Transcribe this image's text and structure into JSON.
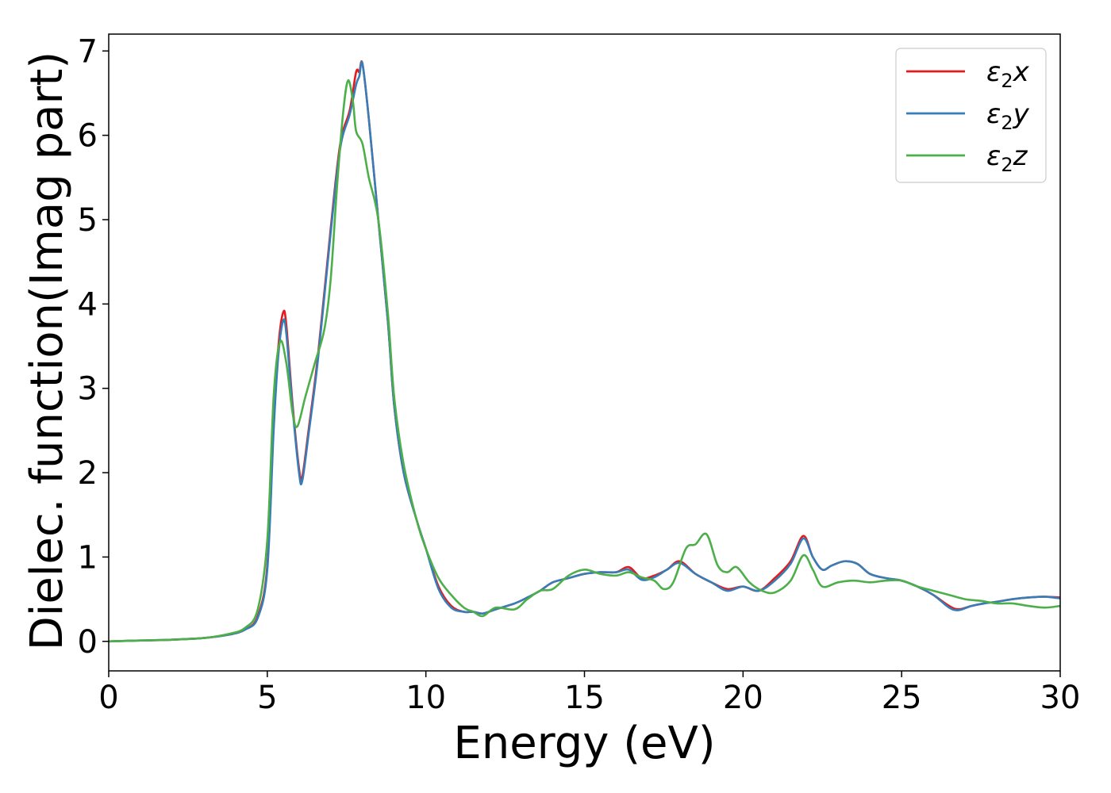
{
  "chart_data": {
    "type": "line",
    "title": "",
    "xlabel": "Energy (eV)",
    "ylabel": "Dielec. function(Imag part)",
    "xlim": [
      0,
      30
    ],
    "ylim": [
      -0.35,
      7.2
    ],
    "xticks": [
      0,
      5,
      10,
      15,
      20,
      25,
      30
    ],
    "yticks": [
      0,
      1,
      2,
      3,
      4,
      5,
      6,
      7
    ],
    "grid": false,
    "legend_position": "top-right",
    "series": [
      {
        "name": "ε2x",
        "legend": {
          "base": "ε",
          "sub": "2",
          "suffix": "x"
        },
        "color": "#e41a1c",
        "points": [
          [
            0,
            0
          ],
          [
            1,
            0.01
          ],
          [
            2,
            0.02
          ],
          [
            3,
            0.04
          ],
          [
            3.8,
            0.08
          ],
          [
            4.3,
            0.14
          ],
          [
            4.7,
            0.3
          ],
          [
            5.0,
            0.9
          ],
          [
            5.2,
            2.6
          ],
          [
            5.35,
            3.5
          ],
          [
            5.5,
            3.9
          ],
          [
            5.6,
            3.75
          ],
          [
            5.8,
            2.8
          ],
          [
            6.0,
            2.05
          ],
          [
            6.1,
            1.95
          ],
          [
            6.3,
            2.5
          ],
          [
            6.6,
            3.4
          ],
          [
            7.0,
            4.9
          ],
          [
            7.3,
            5.9
          ],
          [
            7.6,
            6.3
          ],
          [
            7.8,
            6.75
          ],
          [
            7.9,
            6.75
          ],
          [
            8.0,
            6.85
          ],
          [
            8.2,
            6.2
          ],
          [
            8.5,
            5.0
          ],
          [
            8.8,
            3.8
          ],
          [
            9.0,
            2.8
          ],
          [
            9.3,
            2.0
          ],
          [
            9.7,
            1.45
          ],
          [
            10.0,
            1.1
          ],
          [
            10.4,
            0.65
          ],
          [
            10.8,
            0.42
          ],
          [
            11.2,
            0.35
          ],
          [
            11.5,
            0.35
          ],
          [
            11.8,
            0.33
          ],
          [
            12.2,
            0.38
          ],
          [
            12.8,
            0.45
          ],
          [
            13.2,
            0.52
          ],
          [
            13.6,
            0.6
          ],
          [
            14.0,
            0.7
          ],
          [
            14.5,
            0.75
          ],
          [
            15.0,
            0.8
          ],
          [
            15.5,
            0.82
          ],
          [
            16.0,
            0.82
          ],
          [
            16.4,
            0.88
          ],
          [
            16.8,
            0.75
          ],
          [
            17.2,
            0.78
          ],
          [
            17.6,
            0.85
          ],
          [
            18.0,
            0.95
          ],
          [
            18.5,
            0.8
          ],
          [
            19.0,
            0.7
          ],
          [
            19.5,
            0.62
          ],
          [
            20.0,
            0.65
          ],
          [
            20.5,
            0.6
          ],
          [
            21.0,
            0.75
          ],
          [
            21.5,
            0.95
          ],
          [
            21.9,
            1.25
          ],
          [
            22.2,
            1.0
          ],
          [
            22.5,
            0.85
          ],
          [
            22.8,
            0.9
          ],
          [
            23.2,
            0.95
          ],
          [
            23.6,
            0.92
          ],
          [
            24.0,
            0.8
          ],
          [
            24.5,
            0.75
          ],
          [
            25.0,
            0.72
          ],
          [
            25.5,
            0.65
          ],
          [
            26.0,
            0.55
          ],
          [
            26.5,
            0.42
          ],
          [
            26.8,
            0.38
          ],
          [
            27.2,
            0.42
          ],
          [
            27.6,
            0.45
          ],
          [
            28.0,
            0.47
          ],
          [
            28.5,
            0.5
          ],
          [
            29.0,
            0.52
          ],
          [
            29.5,
            0.53
          ],
          [
            30.0,
            0.52
          ]
        ]
      },
      {
        "name": "ε2y",
        "legend": {
          "base": "ε",
          "sub": "2",
          "suffix": "y"
        },
        "color": "#377eb8",
        "points": [
          [
            0,
            0
          ],
          [
            1,
            0.01
          ],
          [
            2,
            0.02
          ],
          [
            3,
            0.04
          ],
          [
            3.8,
            0.08
          ],
          [
            4.3,
            0.14
          ],
          [
            4.7,
            0.28
          ],
          [
            5.0,
            0.85
          ],
          [
            5.2,
            2.5
          ],
          [
            5.35,
            3.4
          ],
          [
            5.5,
            3.8
          ],
          [
            5.6,
            3.65
          ],
          [
            5.8,
            2.75
          ],
          [
            6.0,
            2.0
          ],
          [
            6.1,
            1.9
          ],
          [
            6.3,
            2.45
          ],
          [
            6.6,
            3.35
          ],
          [
            7.0,
            4.85
          ],
          [
            7.3,
            5.85
          ],
          [
            7.6,
            6.25
          ],
          [
            7.8,
            6.6
          ],
          [
            7.9,
            6.7
          ],
          [
            8.0,
            6.85
          ],
          [
            8.2,
            6.2
          ],
          [
            8.5,
            5.0
          ],
          [
            8.8,
            3.8
          ],
          [
            9.0,
            2.8
          ],
          [
            9.3,
            2.0
          ],
          [
            9.7,
            1.45
          ],
          [
            10.0,
            1.1
          ],
          [
            10.4,
            0.62
          ],
          [
            10.8,
            0.4
          ],
          [
            11.2,
            0.35
          ],
          [
            11.5,
            0.35
          ],
          [
            11.8,
            0.33
          ],
          [
            12.2,
            0.38
          ],
          [
            12.8,
            0.45
          ],
          [
            13.2,
            0.52
          ],
          [
            13.6,
            0.6
          ],
          [
            14.0,
            0.7
          ],
          [
            14.5,
            0.75
          ],
          [
            15.0,
            0.8
          ],
          [
            15.5,
            0.82
          ],
          [
            16.0,
            0.82
          ],
          [
            16.4,
            0.85
          ],
          [
            16.8,
            0.73
          ],
          [
            17.2,
            0.76
          ],
          [
            17.6,
            0.85
          ],
          [
            18.0,
            0.93
          ],
          [
            18.5,
            0.8
          ],
          [
            19.0,
            0.7
          ],
          [
            19.5,
            0.6
          ],
          [
            20.0,
            0.65
          ],
          [
            20.5,
            0.6
          ],
          [
            21.0,
            0.72
          ],
          [
            21.5,
            0.92
          ],
          [
            21.9,
            1.22
          ],
          [
            22.2,
            1.0
          ],
          [
            22.5,
            0.85
          ],
          [
            22.8,
            0.9
          ],
          [
            23.2,
            0.95
          ],
          [
            23.6,
            0.92
          ],
          [
            24.0,
            0.8
          ],
          [
            24.5,
            0.75
          ],
          [
            25.0,
            0.72
          ],
          [
            25.5,
            0.65
          ],
          [
            26.0,
            0.55
          ],
          [
            26.5,
            0.4
          ],
          [
            26.8,
            0.37
          ],
          [
            27.2,
            0.42
          ],
          [
            27.6,
            0.45
          ],
          [
            28.0,
            0.47
          ],
          [
            28.5,
            0.5
          ],
          [
            29.0,
            0.52
          ],
          [
            29.5,
            0.53
          ],
          [
            30.0,
            0.51
          ]
        ]
      },
      {
        "name": "ε2z",
        "legend": {
          "base": "ε",
          "sub": "2",
          "suffix": "z"
        },
        "color": "#4daf4a",
        "points": [
          [
            0,
            0
          ],
          [
            1,
            0.01
          ],
          [
            2,
            0.02
          ],
          [
            3,
            0.04
          ],
          [
            3.8,
            0.09
          ],
          [
            4.3,
            0.16
          ],
          [
            4.7,
            0.38
          ],
          [
            5.0,
            1.2
          ],
          [
            5.2,
            2.9
          ],
          [
            5.4,
            3.55
          ],
          [
            5.6,
            3.3
          ],
          [
            5.8,
            2.7
          ],
          [
            5.95,
            2.55
          ],
          [
            6.2,
            2.9
          ],
          [
            6.5,
            3.3
          ],
          [
            6.8,
            3.7
          ],
          [
            7.0,
            4.3
          ],
          [
            7.2,
            5.4
          ],
          [
            7.4,
            6.3
          ],
          [
            7.55,
            6.65
          ],
          [
            7.7,
            6.4
          ],
          [
            7.8,
            6.05
          ],
          [
            8.0,
            5.9
          ],
          [
            8.2,
            5.5
          ],
          [
            8.5,
            5.0
          ],
          [
            8.8,
            3.9
          ],
          [
            9.0,
            2.9
          ],
          [
            9.3,
            2.1
          ],
          [
            9.7,
            1.45
          ],
          [
            10.0,
            1.1
          ],
          [
            10.4,
            0.75
          ],
          [
            10.8,
            0.55
          ],
          [
            11.2,
            0.4
          ],
          [
            11.5,
            0.35
          ],
          [
            11.8,
            0.3
          ],
          [
            12.2,
            0.4
          ],
          [
            12.8,
            0.38
          ],
          [
            13.2,
            0.5
          ],
          [
            13.6,
            0.6
          ],
          [
            14.0,
            0.62
          ],
          [
            14.5,
            0.78
          ],
          [
            15.0,
            0.85
          ],
          [
            15.5,
            0.8
          ],
          [
            16.0,
            0.78
          ],
          [
            16.4,
            0.82
          ],
          [
            16.8,
            0.76
          ],
          [
            17.2,
            0.72
          ],
          [
            17.5,
            0.62
          ],
          [
            17.8,
            0.7
          ],
          [
            18.2,
            1.1
          ],
          [
            18.5,
            1.15
          ],
          [
            18.85,
            1.27
          ],
          [
            19.2,
            0.9
          ],
          [
            19.5,
            0.82
          ],
          [
            19.8,
            0.88
          ],
          [
            20.2,
            0.7
          ],
          [
            20.6,
            0.6
          ],
          [
            21.0,
            0.58
          ],
          [
            21.5,
            0.72
          ],
          [
            21.9,
            1.02
          ],
          [
            22.2,
            0.85
          ],
          [
            22.5,
            0.65
          ],
          [
            23.0,
            0.7
          ],
          [
            23.5,
            0.72
          ],
          [
            24.0,
            0.7
          ],
          [
            24.5,
            0.72
          ],
          [
            25.0,
            0.72
          ],
          [
            25.5,
            0.65
          ],
          [
            26.0,
            0.6
          ],
          [
            26.5,
            0.55
          ],
          [
            27.0,
            0.5
          ],
          [
            27.5,
            0.48
          ],
          [
            28.0,
            0.45
          ],
          [
            28.5,
            0.45
          ],
          [
            29.0,
            0.42
          ],
          [
            29.5,
            0.4
          ],
          [
            30.0,
            0.42
          ]
        ]
      }
    ]
  }
}
